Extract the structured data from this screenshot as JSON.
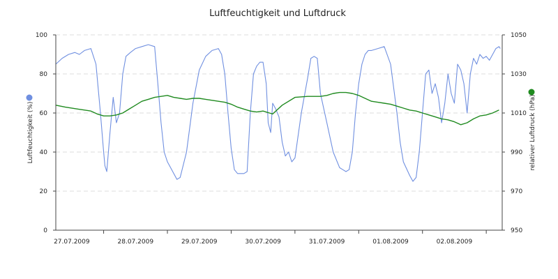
{
  "chart_data": {
    "type": "line",
    "title": "Luftfeuchtigkeit und Luftdruck",
    "ylabel_left": "Luftfeuchtigkeit (%)",
    "ylabel_right": "relativer Luftdruck (hPa)",
    "ylim_left": [
      0,
      100
    ],
    "ylim_right": [
      950,
      1050
    ],
    "yticks_left": [
      "0",
      "20",
      "40",
      "60",
      "80",
      "100"
    ],
    "yticks_right": [
      "950",
      "970",
      "990",
      "1010",
      "1030",
      "1050"
    ],
    "xlim": [
      -0.25,
      6.75
    ],
    "xticks": [
      "27.07.2009",
      "28.07.2009",
      "29.07.2009",
      "30.07.2009",
      "31.07.2009",
      "01.08.2009",
      "02.08.2009"
    ],
    "grid": true,
    "colors": {
      "humidity": "#6f8fe0",
      "pressure": "#1f8a1f",
      "grid": "#dddddd",
      "axis": "#444444"
    },
    "series": [
      {
        "axis": "left",
        "color": "#6f8fe0",
        "x": [
          -0.25,
          -0.15,
          -0.05,
          0.05,
          0.12,
          0.2,
          0.3,
          0.38,
          0.45,
          0.5,
          0.52,
          0.55,
          0.6,
          0.65,
          0.7,
          0.75,
          0.8,
          0.85,
          0.92,
          1.0,
          1.1,
          1.2,
          1.3,
          1.35,
          1.4,
          1.45,
          1.5,
          1.55,
          1.6,
          1.65,
          1.7,
          1.8,
          1.9,
          2.0,
          2.1,
          2.2,
          2.3,
          2.35,
          2.4,
          2.45,
          2.5,
          2.55,
          2.6,
          2.7,
          2.75,
          2.8,
          2.85,
          2.9,
          2.95,
          3.0,
          3.05,
          3.08,
          3.12,
          3.15,
          3.2,
          3.25,
          3.3,
          3.35,
          3.4,
          3.45,
          3.5,
          3.6,
          3.7,
          3.75,
          3.8,
          3.85,
          3.9,
          4.0,
          4.1,
          4.2,
          4.25,
          4.3,
          4.35,
          4.4,
          4.45,
          4.5,
          4.55,
          4.6,
          4.65,
          4.7,
          4.8,
          4.9,
          5.0,
          5.1,
          5.15,
          5.2,
          5.3,
          5.35,
          5.4,
          5.45,
          5.5,
          5.55,
          5.6,
          5.65,
          5.7,
          5.75,
          5.8,
          5.85,
          5.9,
          5.95,
          6.0,
          6.05,
          6.1,
          6.15,
          6.2,
          6.25,
          6.3,
          6.35,
          6.4,
          6.45,
          6.5,
          6.55,
          6.6,
          6.65,
          6.7,
          6.72
        ],
        "values": [
          85,
          88,
          90,
          91,
          90,
          92,
          93,
          85,
          60,
          40,
          33,
          30,
          50,
          68,
          55,
          60,
          80,
          89,
          91,
          93,
          94,
          95,
          94,
          75,
          55,
          40,
          35,
          32,
          29,
          26,
          27,
          40,
          65,
          82,
          89,
          92,
          93,
          90,
          80,
          60,
          42,
          31,
          29,
          29,
          30,
          60,
          80,
          84,
          86,
          86,
          75,
          55,
          50,
          65,
          62,
          58,
          45,
          38,
          40,
          35,
          37,
          60,
          78,
          88,
          89,
          88,
          70,
          55,
          40,
          32,
          31,
          30,
          31,
          40,
          60,
          75,
          85,
          90,
          92,
          92,
          93,
          94,
          85,
          60,
          45,
          35,
          28,
          25,
          27,
          40,
          60,
          80,
          82,
          70,
          75,
          68,
          55,
          65,
          80,
          70,
          65,
          85,
          82,
          75,
          60,
          80,
          88,
          85,
          90,
          88,
          89,
          87,
          90,
          93,
          94,
          93
        ],
        "name": ""
      },
      {
        "axis": "right",
        "color": "#1f8a1f",
        "x": [
          -0.25,
          -0.1,
          0.1,
          0.3,
          0.4,
          0.5,
          0.6,
          0.7,
          0.8,
          0.9,
          1.0,
          1.1,
          1.2,
          1.3,
          1.4,
          1.5,
          1.6,
          1.7,
          1.8,
          1.9,
          2.0,
          2.1,
          2.2,
          2.3,
          2.4,
          2.5,
          2.6,
          2.7,
          2.8,
          2.9,
          3.0,
          3.1,
          3.15,
          3.3,
          3.5,
          3.7,
          3.9,
          4.0,
          4.1,
          4.2,
          4.3,
          4.4,
          4.5,
          4.6,
          4.7,
          4.8,
          4.9,
          5.0,
          5.1,
          5.2,
          5.3,
          5.4,
          5.5,
          5.6,
          5.7,
          5.8,
          5.9,
          6.0,
          6.1,
          6.2,
          6.3,
          6.4,
          6.5,
          6.6,
          6.7
        ],
        "values": [
          1014,
          1013,
          1012,
          1011,
          1009.5,
          1008.5,
          1008.5,
          1009,
          1010,
          1012,
          1014,
          1016,
          1017,
          1018,
          1018.5,
          1019,
          1018,
          1017.5,
          1017,
          1017.5,
          1017.5,
          1017,
          1016.5,
          1016,
          1015.5,
          1014.5,
          1013,
          1012,
          1011,
          1010.5,
          1011,
          1010,
          1009.5,
          1014,
          1018,
          1018.5,
          1018.5,
          1019,
          1020,
          1020.5,
          1020.5,
          1020,
          1019,
          1017.5,
          1016,
          1015.5,
          1015,
          1014.5,
          1013.5,
          1012.5,
          1011.5,
          1011,
          1010,
          1009,
          1008,
          1007,
          1006.5,
          1005.5,
          1004,
          1005,
          1007,
          1008.5,
          1009,
          1010,
          1011.5
        ],
        "name": ""
      }
    ]
  }
}
